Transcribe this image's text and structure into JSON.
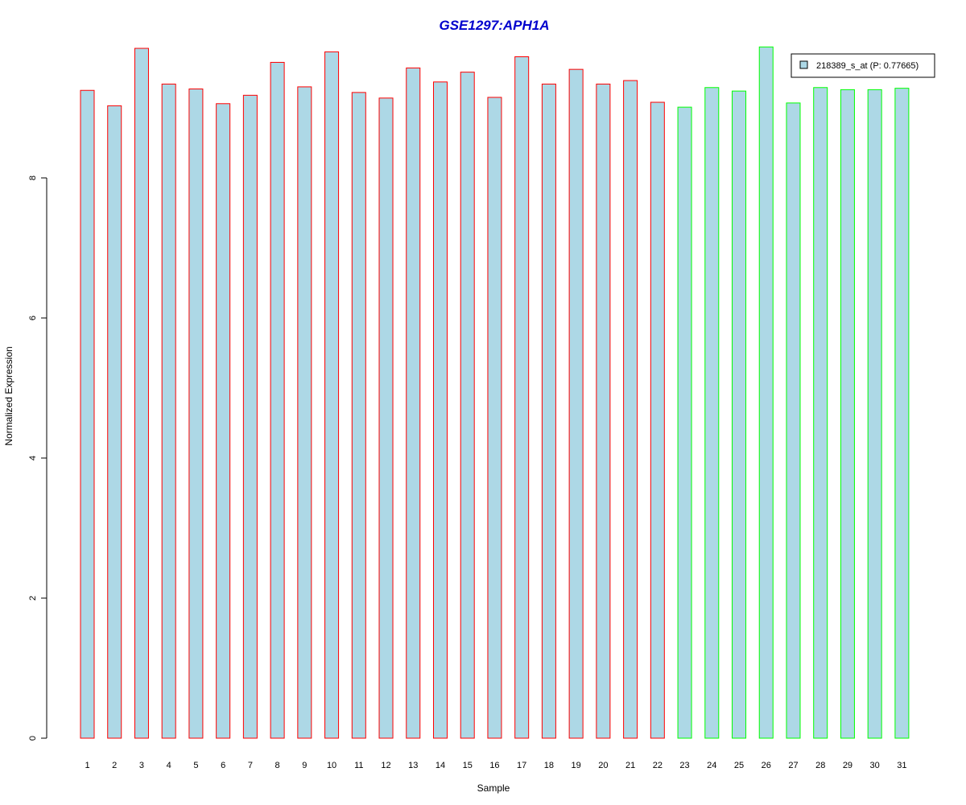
{
  "chart_data": {
    "type": "bar",
    "title": "GSE1297:APH1A",
    "xlabel": "Sample",
    "ylabel": "Normalized Expression",
    "ylim": [
      0,
      9.9
    ],
    "yticks": [
      0,
      2,
      4,
      6,
      8
    ],
    "grid": false,
    "legend_position": "top-right",
    "fill_color": "#add8e6",
    "categories": [
      "1",
      "2",
      "3",
      "4",
      "5",
      "6",
      "7",
      "8",
      "9",
      "10",
      "11",
      "12",
      "13",
      "14",
      "15",
      "16",
      "17",
      "18",
      "19",
      "20",
      "21",
      "22",
      "23",
      "24",
      "25",
      "26",
      "27",
      "28",
      "29",
      "30",
      "31"
    ],
    "series": [
      {
        "name": "218389_s_at (P: 0.77665)",
        "values": [
          9.25,
          9.03,
          9.85,
          9.34,
          9.27,
          9.06,
          9.18,
          9.65,
          9.3,
          9.8,
          9.22,
          9.14,
          9.57,
          9.37,
          9.51,
          9.15,
          9.73,
          9.34,
          9.55,
          9.34,
          9.39,
          9.08,
          9.01,
          9.29,
          9.24,
          9.87,
          9.07,
          9.29,
          9.26,
          9.26,
          9.28
        ]
      }
    ],
    "groups": [
      {
        "samples": [
          "1",
          "2",
          "3",
          "4",
          "5",
          "6",
          "7",
          "8",
          "9",
          "10",
          "11",
          "12",
          "13",
          "14",
          "15",
          "16",
          "17",
          "18",
          "19",
          "20",
          "21",
          "22"
        ],
        "border_color": "#ff0000"
      },
      {
        "samples": [
          "23",
          "24",
          "25",
          "26",
          "27",
          "28",
          "29",
          "30",
          "31"
        ],
        "border_color": "#00ff00"
      }
    ]
  }
}
